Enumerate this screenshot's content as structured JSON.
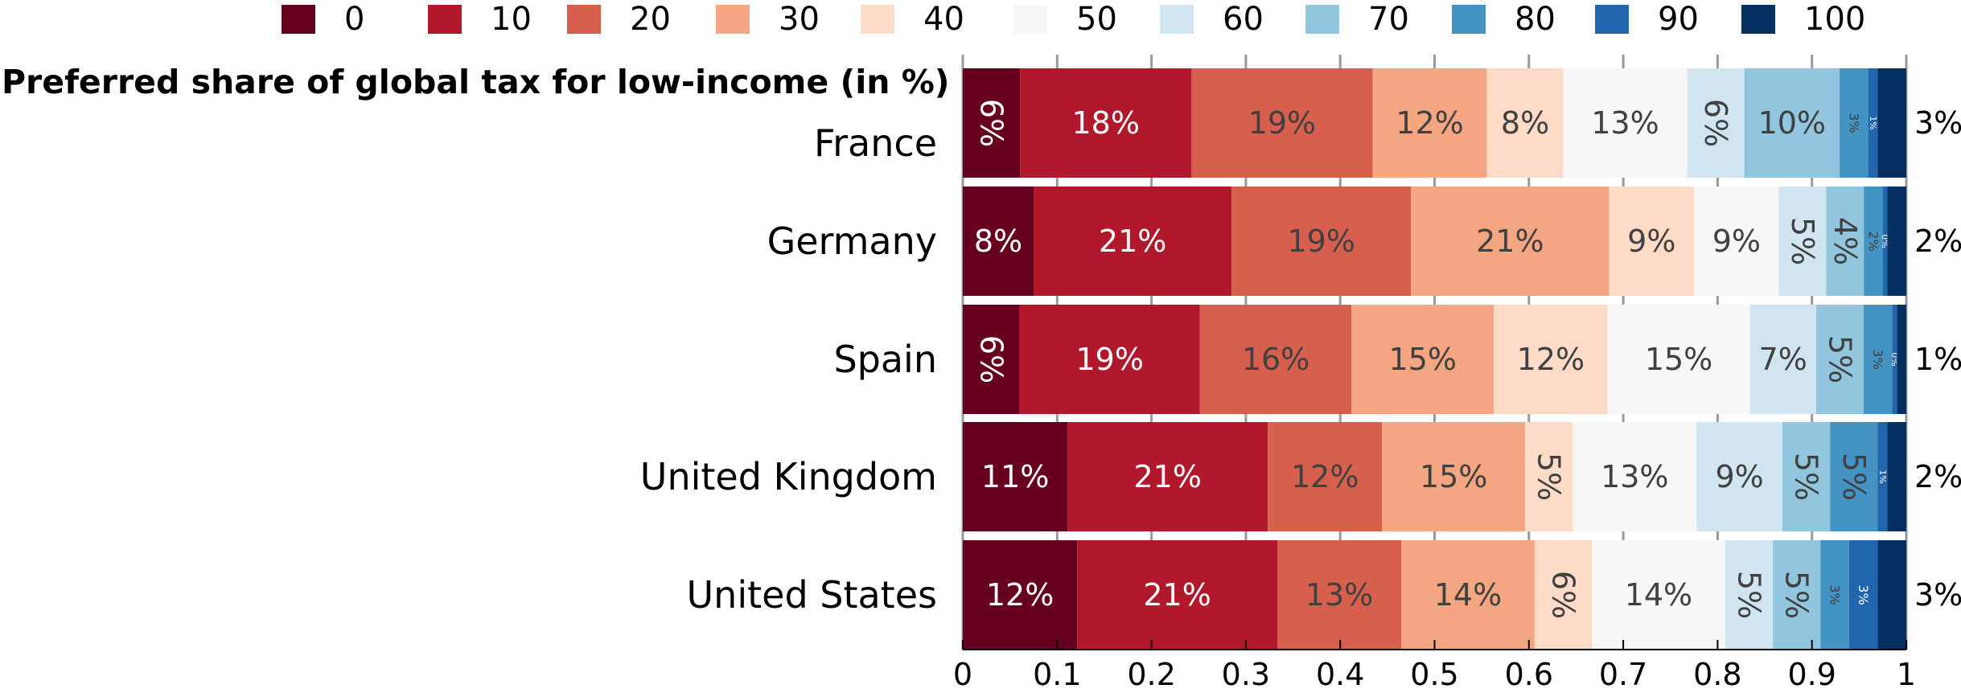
{
  "chart_data": {
    "type": "bar",
    "orientation": "horizontal",
    "stacked": true,
    "title": "Preferred share of global tax for low-income (in %)",
    "xlim": [
      0,
      1
    ],
    "xticks": [
      "0",
      "0.1",
      "0.2",
      "0.3",
      "0.4",
      "0.5",
      "0.6",
      "0.7",
      "0.8",
      "0.9",
      "1"
    ],
    "grid": true,
    "legend_position": "top",
    "legend": [
      "0",
      "10",
      "20",
      "30",
      "40",
      "50",
      "60",
      "70",
      "80",
      "90",
      "100"
    ],
    "colors": [
      "#67001f",
      "#b2182b",
      "#d6604d",
      "#f4a582",
      "#fddbc7",
      "#f7f7f7",
      "#d1e5f0",
      "#92c5de",
      "#4393c3",
      "#2166ac",
      "#053061"
    ],
    "label_colors": [
      "#ffffff",
      "#ffffff",
      "#404040",
      "#404040",
      "#404040",
      "#404040",
      "#404040",
      "#404040",
      "#404040",
      "#ffffff",
      "#ffffff"
    ],
    "categories": [
      "France",
      "Germany",
      "Spain",
      "United Kingdom",
      "United States"
    ],
    "values": [
      [
        0.06,
        0.18,
        0.19,
        0.12,
        0.08,
        0.13,
        0.06,
        0.1,
        0.03,
        0.01,
        0.03
      ],
      [
        0.075,
        0.21,
        0.19,
        0.21,
        0.09,
        0.09,
        0.05,
        0.04,
        0.02,
        0.005,
        0.02
      ],
      [
        0.06,
        0.19,
        0.16,
        0.15,
        0.12,
        0.15,
        0.07,
        0.05,
        0.03,
        0.005,
        0.01
      ],
      [
        0.11,
        0.21,
        0.12,
        0.15,
        0.05,
        0.13,
        0.09,
        0.05,
        0.05,
        0.01,
        0.02
      ],
      [
        0.12,
        0.21,
        0.13,
        0.14,
        0.06,
        0.14,
        0.05,
        0.05,
        0.03,
        0.03,
        0.03
      ]
    ],
    "data_labels": [
      [
        "6%",
        "18%",
        "19%",
        "12%",
        "8%",
        "13%",
        "6%",
        "10%",
        "3%",
        "1%",
        "3%"
      ],
      [
        "8%",
        "21%",
        "19%",
        "21%",
        "9%",
        "9%",
        "5%",
        "4%",
        "2%",
        "0%",
        "2%"
      ],
      [
        "6%",
        "19%",
        "16%",
        "15%",
        "12%",
        "15%",
        "7%",
        "5%",
        "3%",
        "0%",
        "1%"
      ],
      [
        "11%",
        "21%",
        "12%",
        "15%",
        "5%",
        "13%",
        "9%",
        "5%",
        "5%",
        "1%",
        "2%"
      ],
      [
        "12%",
        "21%",
        "13%",
        "14%",
        "6%",
        "14%",
        "5%",
        "5%",
        "3%",
        "3%",
        "3%"
      ]
    ]
  }
}
